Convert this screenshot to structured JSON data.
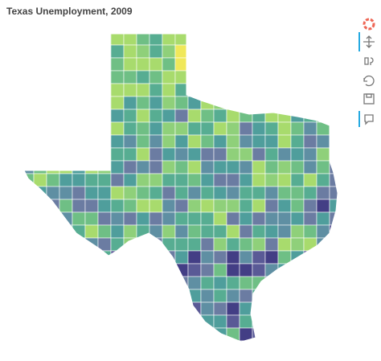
{
  "header": {
    "title": "Texas Unemployment, 2009"
  }
}
